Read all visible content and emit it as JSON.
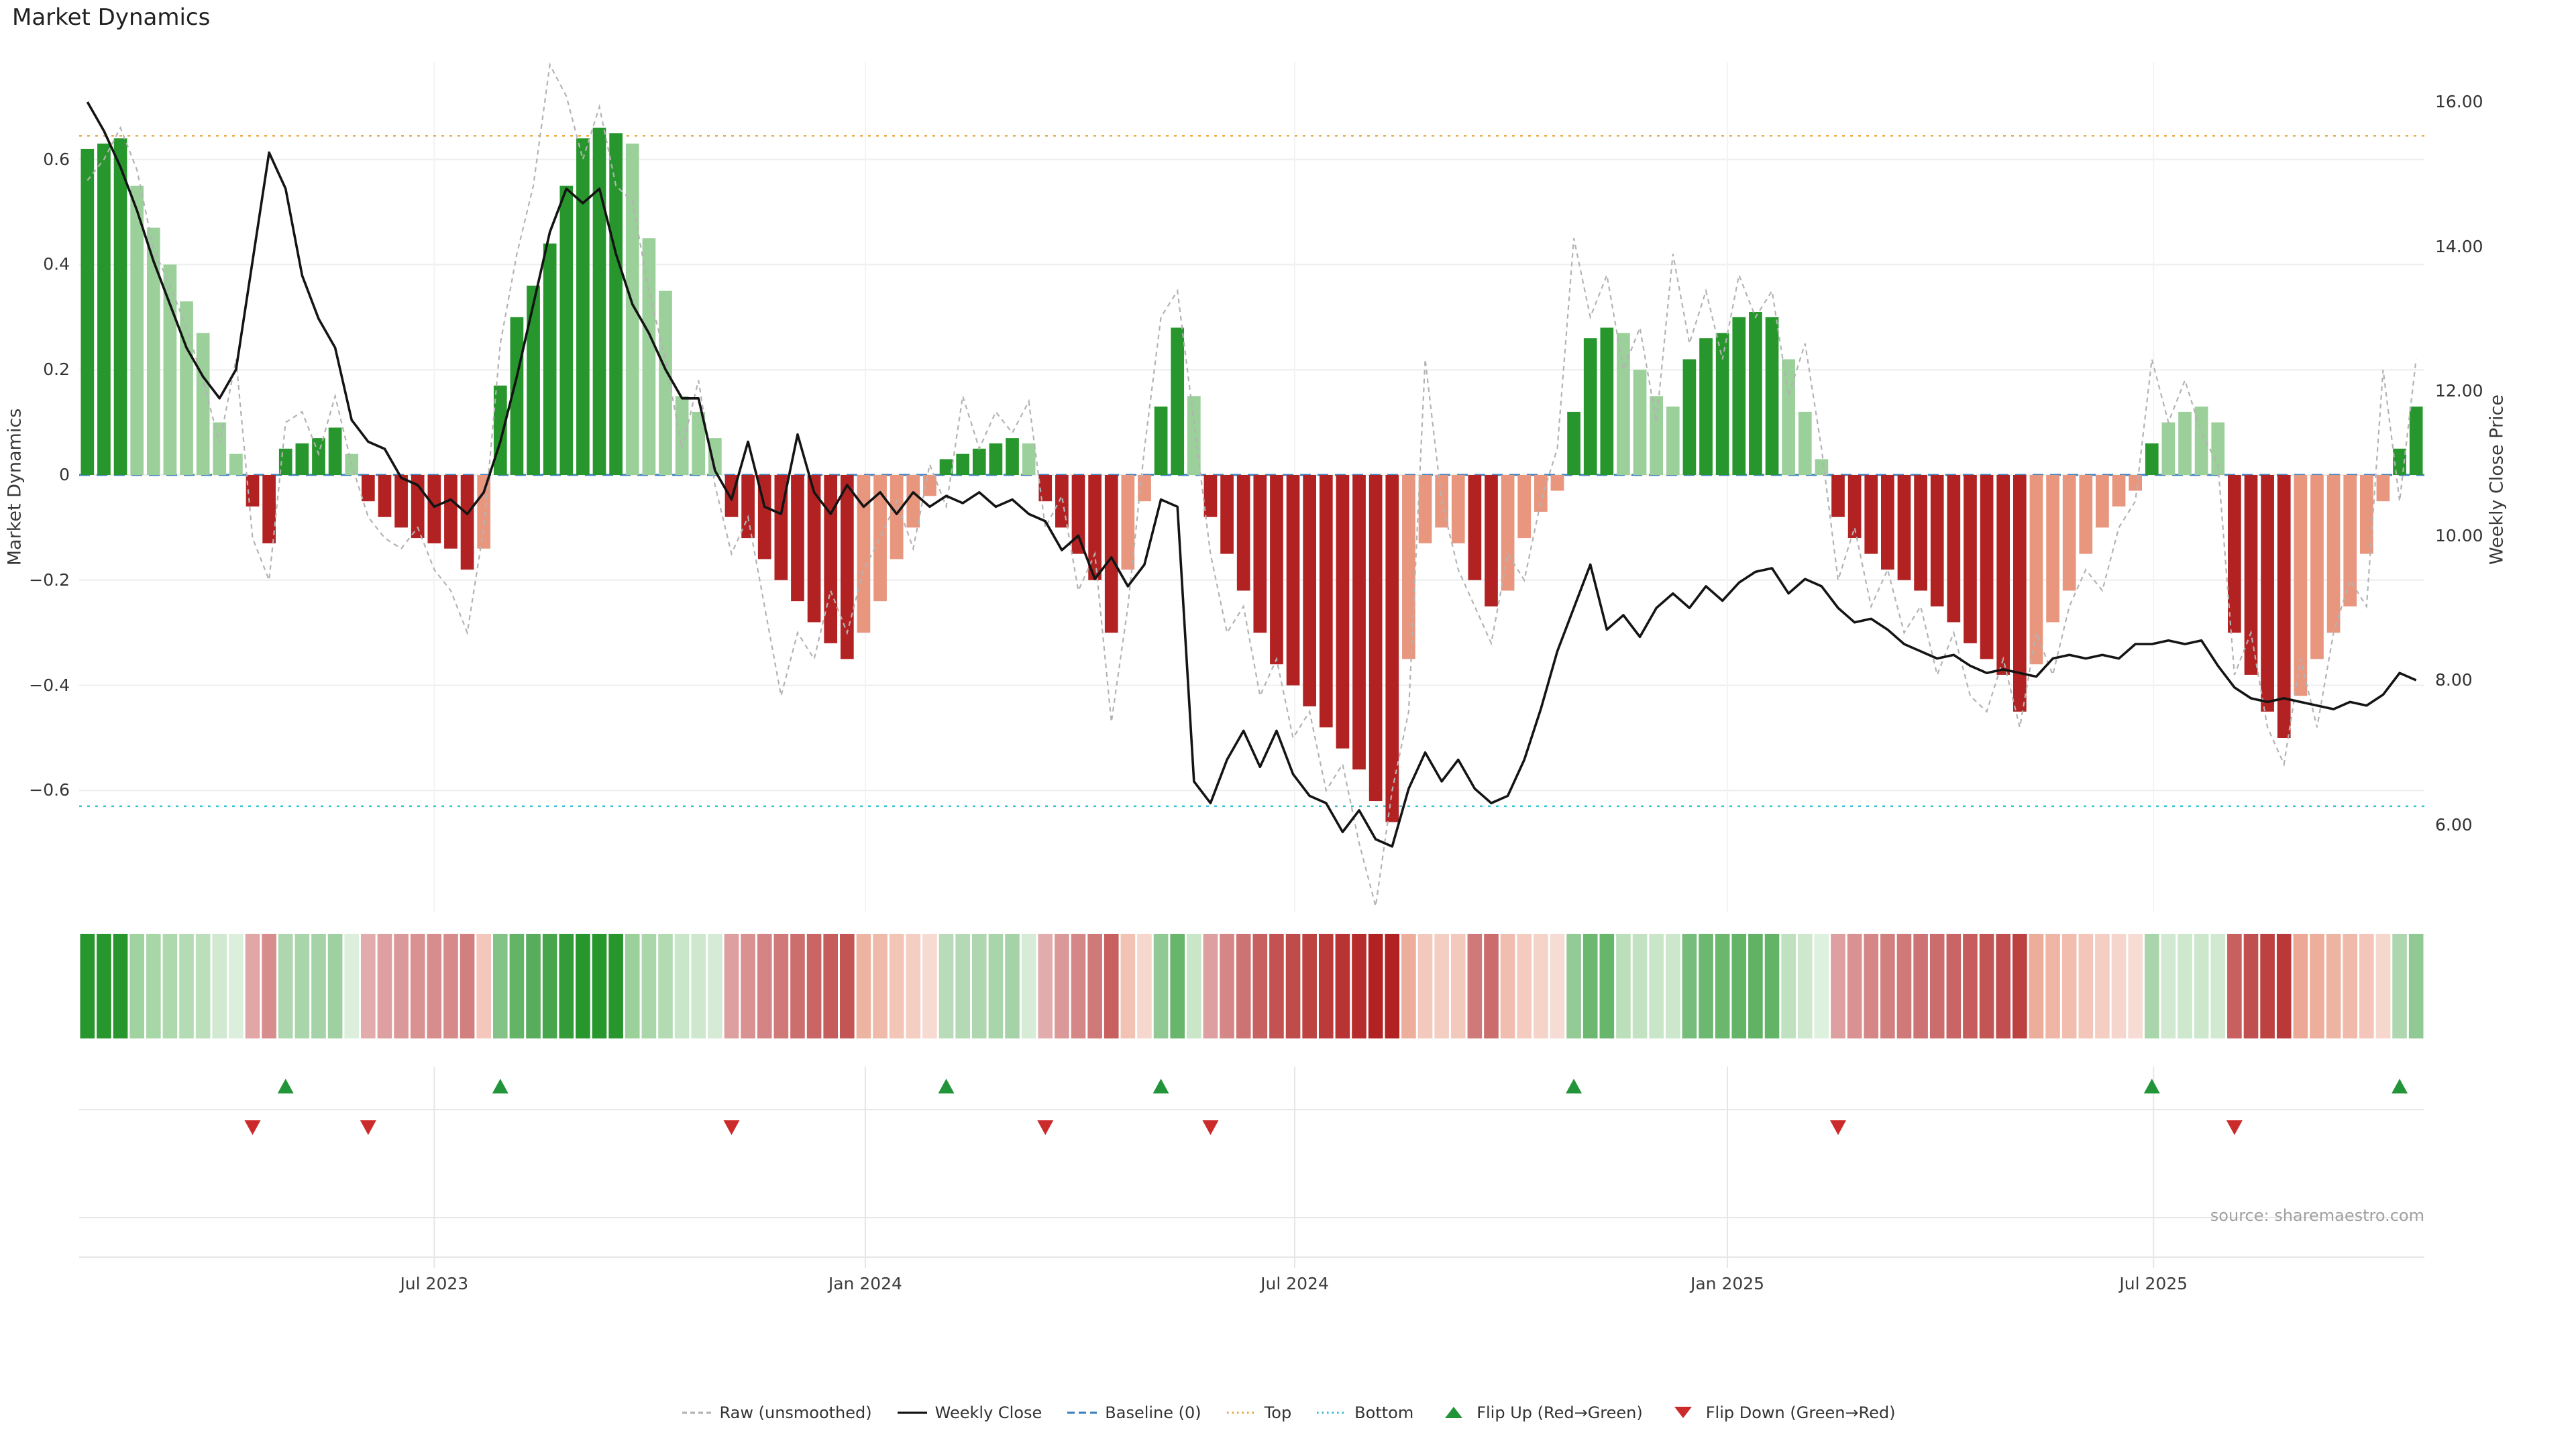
{
  "title": "Market Dynamics",
  "source": "source: sharemaestro.com",
  "colors": {
    "bar_palette": {
      "g": "#27962c",
      "G": "#9bd09b",
      "r": "#b22222",
      "s": "#e8967e"
    },
    "raw": "#b3b3b3",
    "weekly_close": "#141414",
    "baseline": "#4384bf",
    "top": "#e9a63f",
    "bottom": "#35c2d2",
    "flip_up": "#22943a",
    "flip_down": "#cc2b2b",
    "grid": "#ededed",
    "lower_grid": "#e6e6e6"
  },
  "legend": [
    {
      "label": "Raw (unsmoothed)",
      "icon": "dashed-line",
      "color": "#b3b3b3"
    },
    {
      "label": "Weekly Close",
      "icon": "solid-line",
      "color": "#141414"
    },
    {
      "label": "Baseline (0)",
      "icon": "longdash-line",
      "color": "#4384bf"
    },
    {
      "label": "Top",
      "icon": "dotted-line",
      "color": "#e9a63f"
    },
    {
      "label": "Bottom",
      "icon": "dotted-line",
      "color": "#35c2d2"
    },
    {
      "label": "Flip Up (Red→Green)",
      "icon": "triangle-up",
      "color": "#22943a"
    },
    {
      "label": "Flip Down (Green→Red)",
      "icon": "triangle-down",
      "color": "#cc2b2b"
    }
  ],
  "chart_data": {
    "type": "bar",
    "description": "Weekly market-dynamics oscillator bars (left axis) with raw unsmoothed line, weekly close price line (right axis), heatmap strip and regime-flip markers",
    "n_weeks": 142,
    "left_axis": {
      "label": "Market Dynamics",
      "ticks": [
        0.6,
        0.4,
        0.2,
        0,
        -0.2,
        -0.4,
        -0.6
      ],
      "tick_labels": [
        "0.6",
        "0.4",
        "0.2",
        "0",
        "−0.2",
        "−0.4",
        "−0.6"
      ],
      "range": [
        -0.84,
        0.785
      ]
    },
    "right_axis": {
      "label": "Weekly Close Price",
      "ticks": [
        16,
        14,
        12,
        10,
        8,
        6
      ],
      "tick_labels": [
        "16.00",
        "14.00",
        "12.00",
        "10.00",
        "8.00",
        "6.00"
      ],
      "range": [
        4.73,
        16.56
      ]
    },
    "x_ticks": [
      {
        "week": 21.5,
        "label": "Jul 2023"
      },
      {
        "week": 47.6,
        "label": "Jan 2024"
      },
      {
        "week": 73.6,
        "label": "Jul 2024"
      },
      {
        "week": 99.8,
        "label": "Jan 2025"
      },
      {
        "week": 125.6,
        "label": "Jul 2025"
      }
    ],
    "reference_lines": {
      "baseline": 0,
      "top": 0.645,
      "bottom": -0.63
    },
    "flip_up_weeks": [
      12,
      25,
      52,
      65,
      90,
      125,
      140
    ],
    "flip_down_weeks": [
      10,
      17,
      39,
      58,
      68,
      106,
      130
    ],
    "series": [
      {
        "name": "Market Dynamics (bars)",
        "type": "bar",
        "axis": "left",
        "shades": "gggGGGGGGGrrggggGrrrrrrrsggggggggGGGGGGrrrrrrrrsssssgggggGrrrrrssggGrrrrrrrrrrrrssssrrssssgggGGGGggggggGGGrrrrrrrrrrrrsssssssgGGGGrrrrssssssgg",
        "values": [
          0.62,
          0.63,
          0.64,
          0.55,
          0.47,
          0.4,
          0.33,
          0.27,
          0.1,
          0.04,
          -0.06,
          -0.13,
          0.05,
          0.06,
          0.07,
          0.09,
          0.04,
          -0.05,
          -0.08,
          -0.1,
          -0.12,
          -0.13,
          -0.14,
          -0.18,
          -0.14,
          0.17,
          0.3,
          0.36,
          0.44,
          0.55,
          0.64,
          0.66,
          0.65,
          0.63,
          0.45,
          0.35,
          0.15,
          0.12,
          0.07,
          -0.08,
          -0.12,
          -0.16,
          -0.2,
          -0.24,
          -0.28,
          -0.32,
          -0.35,
          -0.3,
          -0.24,
          -0.16,
          -0.1,
          -0.04,
          0.03,
          0.04,
          0.05,
          0.06,
          0.07,
          0.06,
          -0.05,
          -0.1,
          -0.15,
          -0.2,
          -0.3,
          -0.18,
          -0.05,
          0.13,
          0.28,
          0.15,
          -0.08,
          -0.15,
          -0.22,
          -0.3,
          -0.36,
          -0.4,
          -0.44,
          -0.48,
          -0.52,
          -0.56,
          -0.62,
          -0.66,
          -0.35,
          -0.13,
          -0.1,
          -0.13,
          -0.2,
          -0.25,
          -0.22,
          -0.12,
          -0.07,
          -0.03,
          0.12,
          0.26,
          0.28,
          0.27,
          0.2,
          0.15,
          0.13,
          0.22,
          0.26,
          0.27,
          0.3,
          0.31,
          0.3,
          0.22,
          0.12,
          0.03,
          -0.08,
          -0.12,
          -0.15,
          -0.18,
          -0.2,
          -0.22,
          -0.25,
          -0.28,
          -0.32,
          -0.35,
          -0.38,
          -0.45,
          -0.36,
          -0.28,
          -0.22,
          -0.15,
          -0.1,
          -0.06,
          -0.03,
          0.06,
          0.1,
          0.12,
          0.13,
          0.1,
          -0.3,
          -0.38,
          -0.45,
          -0.5,
          -0.42,
          -0.35,
          -0.3,
          -0.25,
          -0.15,
          -0.05,
          0.05,
          0.13
        ]
      },
      {
        "name": "Raw (unsmoothed)",
        "type": "line",
        "axis": "left",
        "values": [
          0.56,
          0.6,
          0.66,
          0.58,
          0.43,
          0.36,
          0.28,
          0.18,
          0.06,
          0.22,
          -0.12,
          -0.2,
          0.1,
          0.12,
          0.04,
          0.15,
          0.02,
          -0.08,
          -0.12,
          -0.14,
          -0.1,
          -0.18,
          -0.22,
          -0.3,
          -0.1,
          0.25,
          0.42,
          0.55,
          0.78,
          0.72,
          0.6,
          0.7,
          0.55,
          0.52,
          0.35,
          0.22,
          0.05,
          0.18,
          -0.02,
          -0.15,
          -0.08,
          -0.25,
          -0.42,
          -0.3,
          -0.35,
          -0.22,
          -0.3,
          -0.18,
          -0.12,
          -0.05,
          -0.14,
          0.02,
          -0.06,
          0.15,
          0.05,
          0.12,
          0.08,
          0.14,
          -0.1,
          -0.04,
          -0.22,
          -0.15,
          -0.47,
          -0.25,
          0.05,
          0.3,
          0.35,
          0.1,
          -0.15,
          -0.3,
          -0.25,
          -0.42,
          -0.35,
          -0.5,
          -0.45,
          -0.6,
          -0.55,
          -0.7,
          -0.82,
          -0.6,
          -0.45,
          0.22,
          -0.05,
          -0.18,
          -0.25,
          -0.32,
          -0.15,
          -0.2,
          -0.05,
          0.05,
          0.45,
          0.3,
          0.38,
          0.2,
          0.28,
          0.1,
          0.42,
          0.25,
          0.35,
          0.22,
          0.38,
          0.3,
          0.35,
          0.15,
          0.25,
          0.05,
          -0.2,
          -0.1,
          -0.25,
          -0.18,
          -0.3,
          -0.25,
          -0.38,
          -0.3,
          -0.42,
          -0.45,
          -0.35,
          -0.48,
          -0.3,
          -0.38,
          -0.25,
          -0.18,
          -0.22,
          -0.1,
          -0.05,
          0.22,
          0.1,
          0.18,
          0.08,
          0.02,
          -0.38,
          -0.3,
          -0.48,
          -0.55,
          -0.35,
          -0.48,
          -0.3,
          -0.2,
          -0.25,
          0.2,
          -0.05,
          0.22
        ]
      },
      {
        "name": "Weekly Close",
        "type": "line",
        "axis": "right",
        "values": [
          16.0,
          15.6,
          15.1,
          14.5,
          13.8,
          13.2,
          12.6,
          12.2,
          11.9,
          12.3,
          13.8,
          15.3,
          14.8,
          13.6,
          13.0,
          12.6,
          11.6,
          11.3,
          11.2,
          10.8,
          10.7,
          10.4,
          10.5,
          10.3,
          10.6,
          11.3,
          12.2,
          13.2,
          14.2,
          14.8,
          14.6,
          14.8,
          13.9,
          13.2,
          12.8,
          12.3,
          11.9,
          11.9,
          10.9,
          10.5,
          11.3,
          10.4,
          10.3,
          11.4,
          10.6,
          10.3,
          10.7,
          10.4,
          10.6,
          10.3,
          10.6,
          10.4,
          10.55,
          10.45,
          10.6,
          10.4,
          10.5,
          10.3,
          10.2,
          9.8,
          10.0,
          9.4,
          9.7,
          9.3,
          9.6,
          10.5,
          10.4,
          6.6,
          6.3,
          6.9,
          7.3,
          6.8,
          7.3,
          6.7,
          6.4,
          6.3,
          5.9,
          6.2,
          5.8,
          5.7,
          6.5,
          7.0,
          6.6,
          6.9,
          6.5,
          6.3,
          6.4,
          6.9,
          7.6,
          8.4,
          9.0,
          9.6,
          8.7,
          8.9,
          8.6,
          9.0,
          9.2,
          9.0,
          9.3,
          9.1,
          9.35,
          9.5,
          9.55,
          9.2,
          9.4,
          9.3,
          9.0,
          8.8,
          8.85,
          8.7,
          8.5,
          8.4,
          8.3,
          8.35,
          8.2,
          8.1,
          8.15,
          8.1,
          8.05,
          8.3,
          8.35,
          8.3,
          8.35,
          8.3,
          8.5,
          8.5,
          8.55,
          8.5,
          8.55,
          8.2,
          7.9,
          7.75,
          7.7,
          7.75,
          7.7,
          7.65,
          7.6,
          7.7,
          7.65,
          7.8,
          8.1,
          8.0
        ]
      }
    ],
    "heatmap_from_bars": true
  }
}
